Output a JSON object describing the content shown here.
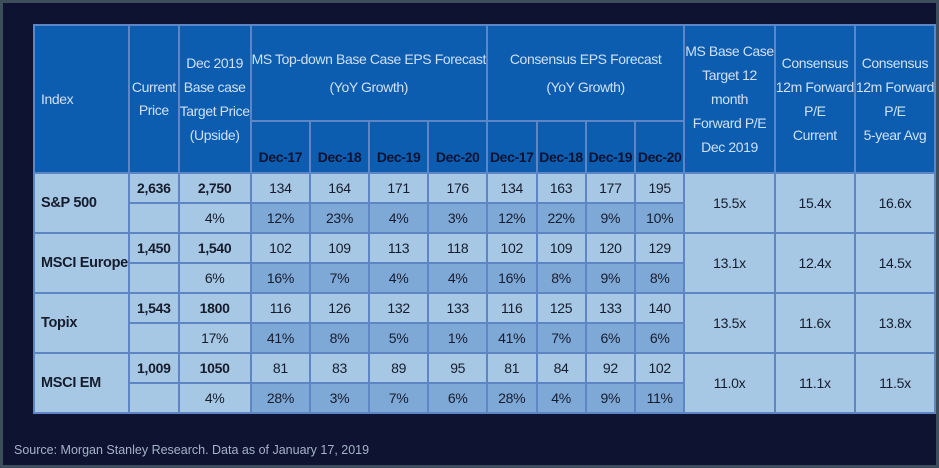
{
  "header": {
    "index": "Index",
    "current_price": "Current Price",
    "target_price_lines": [
      "Dec 2019",
      "Base case",
      "Target Price",
      "(Upside)"
    ],
    "ms_eps_lines": [
      "MS Top-down Base Case EPS Forecast",
      "(YoY Growth)"
    ],
    "cons_eps_lines": [
      "Consensus EPS Forecast",
      "(YoY Growth)"
    ],
    "ms_pe_lines": [
      "MS Base Case",
      "Target 12",
      "month",
      "Forward P/E",
      "Dec 2019"
    ],
    "cons_pe_current_lines": [
      "Consensus",
      "12m Forward",
      "P/E",
      "Current"
    ],
    "cons_pe_avg_lines": [
      "Consensus",
      "12m Forward",
      "P/E",
      "5-year Avg"
    ],
    "years": [
      "Dec-17",
      "Dec-18",
      "Dec-19",
      "Dec-20"
    ]
  },
  "rows": [
    {
      "name": "S&P 500",
      "current_price": "2,636",
      "target_price": "2,750",
      "upside": "4%",
      "ms_eps": [
        "134",
        "164",
        "171",
        "176"
      ],
      "ms_growth": [
        "12%",
        "23%",
        "4%",
        "3%"
      ],
      "cons_eps": [
        "134",
        "163",
        "177",
        "195"
      ],
      "cons_growth": [
        "12%",
        "22%",
        "9%",
        "10%"
      ],
      "ms_pe": "15.5x",
      "cons_pe_current": "15.4x",
      "cons_pe_avg": "16.6x"
    },
    {
      "name": "MSCI Europe",
      "current_price": "1,450",
      "target_price": "1,540",
      "upside": "6%",
      "ms_eps": [
        "102",
        "109",
        "113",
        "118"
      ],
      "ms_growth": [
        "16%",
        "7%",
        "4%",
        "4%"
      ],
      "cons_eps": [
        "102",
        "109",
        "120",
        "129"
      ],
      "cons_growth": [
        "16%",
        "8%",
        "9%",
        "8%"
      ],
      "ms_pe": "13.1x",
      "cons_pe_current": "12.4x",
      "cons_pe_avg": "14.5x"
    },
    {
      "name": "Topix",
      "current_price": "1,543",
      "target_price": "1800",
      "upside": "17%",
      "ms_eps": [
        "116",
        "126",
        "132",
        "133"
      ],
      "ms_growth": [
        "41%",
        "8%",
        "5%",
        "1%"
      ],
      "cons_eps": [
        "116",
        "125",
        "133",
        "140"
      ],
      "cons_growth": [
        "41%",
        "7%",
        "6%",
        "6%"
      ],
      "ms_pe": "13.5x",
      "cons_pe_current": "11.6x",
      "cons_pe_avg": "13.8x"
    },
    {
      "name": "MSCI EM",
      "current_price": "1,009",
      "target_price": "1050",
      "upside": "4%",
      "ms_eps": [
        "81",
        "83",
        "89",
        "95"
      ],
      "ms_growth": [
        "28%",
        "3%",
        "7%",
        "6%"
      ],
      "cons_eps": [
        "81",
        "84",
        "92",
        "102"
      ],
      "cons_growth": [
        "28%",
        "4%",
        "9%",
        "11%"
      ],
      "ms_pe": "11.0x",
      "cons_pe_current": "11.1x",
      "cons_pe_avg": "11.5x"
    }
  ],
  "source": "Source: Morgan Stanley Research. Data as of January 17, 2019"
}
